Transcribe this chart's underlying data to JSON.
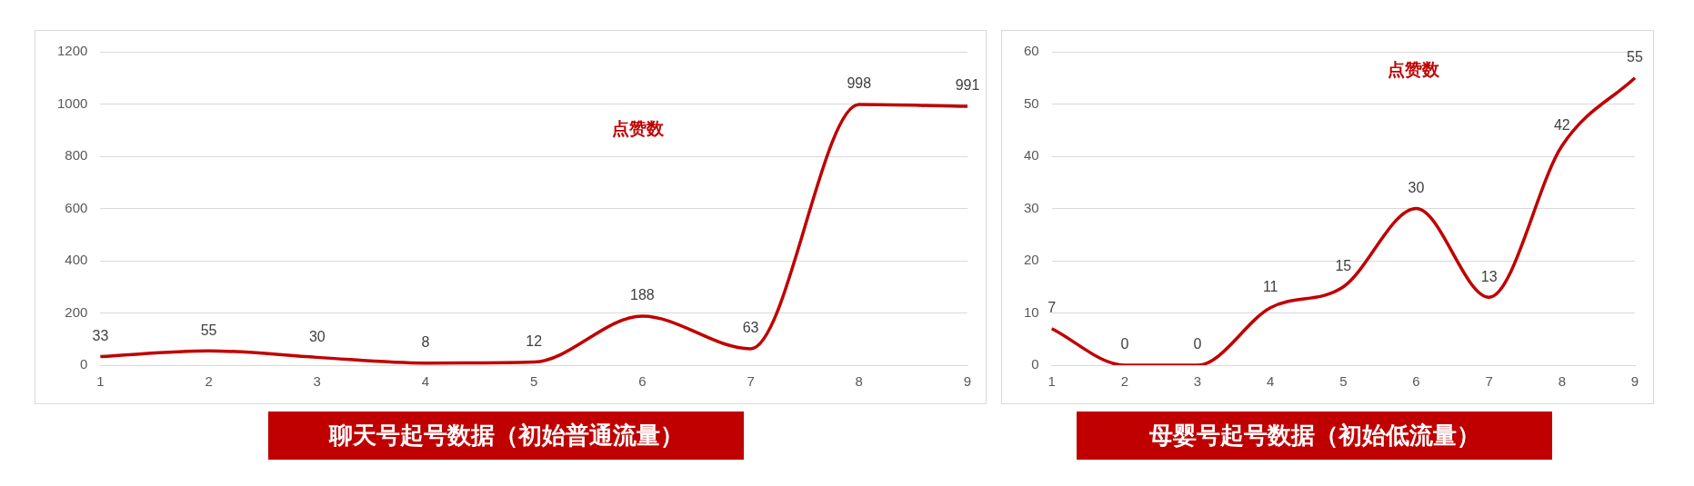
{
  "chart_data": [
    {
      "type": "line",
      "title": "聊天号起号数据（初始普通流量）",
      "categories": [
        "1",
        "2",
        "3",
        "4",
        "5",
        "6",
        "7",
        "8",
        "9"
      ],
      "series": [
        {
          "name": "点赞数",
          "color": "#c00000",
          "values": [
            33,
            55,
            30,
            8,
            12,
            188,
            63,
            998,
            991
          ]
        }
      ],
      "ylim": [
        0,
        1200
      ],
      "yticks": [
        0,
        200,
        400,
        600,
        800,
        1000,
        1200
      ],
      "grid": "y",
      "data_labels": true,
      "legend": false,
      "marker": "none",
      "line_style": "solid"
    },
    {
      "type": "line",
      "title": "母婴号起号数据（初始低流量）",
      "categories": [
        "1",
        "2",
        "3",
        "4",
        "5",
        "6",
        "7",
        "8",
        "9"
      ],
      "series": [
        {
          "name": "点赞数",
          "color": "#c00000",
          "values": [
            7,
            0,
            0,
            11,
            15,
            30,
            13,
            42,
            55
          ]
        }
      ],
      "ylim": [
        0,
        60
      ],
      "yticks": [
        0,
        10,
        20,
        30,
        40,
        50,
        60
      ],
      "grid": "y",
      "data_labels": true,
      "legend": false,
      "marker": "none",
      "line_style": "solid"
    }
  ]
}
